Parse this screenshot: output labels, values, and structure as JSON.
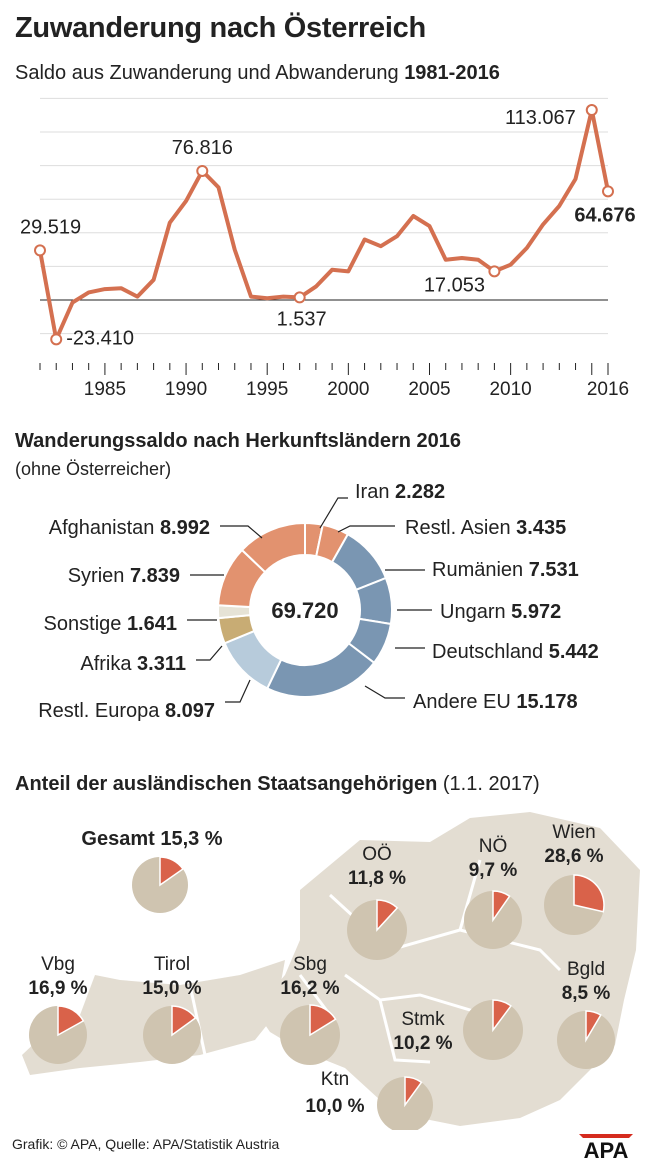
{
  "header": {
    "title": "Zuwanderung nach Österreich",
    "subtitle_prefix": "Saldo aus Zuwanderung und Abwanderung",
    "subtitle_range": "1981-2016"
  },
  "colors": {
    "accent": "#d9745a",
    "line": "#d47050",
    "grid": "#dddddd",
    "pie_bg": "#cfc4b0",
    "pie_slice": "#d9624a",
    "map": "#e3ddd2",
    "donut_asia": "#e2926f",
    "donut_eu": "#7a96b2",
    "donut_other": "#c8ac74",
    "donut_europe": "#b7cbdb",
    "donut_misc": "#e6e3d6"
  },
  "chart_data": [
    {
      "type": "line",
      "title": "Saldo aus Zuwanderung und Abwanderung 1981-2016",
      "x": [
        1981,
        1982,
        1983,
        1984,
        1985,
        1986,
        1987,
        1988,
        1989,
        1990,
        1991,
        1992,
        1993,
        1994,
        1995,
        1996,
        1997,
        1998,
        1999,
        2000,
        2001,
        2002,
        2003,
        2004,
        2005,
        2006,
        2007,
        2008,
        2009,
        2010,
        2011,
        2012,
        2013,
        2014,
        2015,
        2016
      ],
      "values": [
        29519,
        -23410,
        -1500,
        4500,
        6500,
        7000,
        2000,
        12000,
        46000,
        59000,
        76816,
        67000,
        30000,
        2000,
        1000,
        2000,
        1537,
        8000,
        18000,
        17000,
        36000,
        32000,
        38000,
        50000,
        44000,
        24000,
        25000,
        24000,
        17053,
        21000,
        31000,
        45000,
        56000,
        72000,
        113067,
        64676
      ],
      "xlim": [
        1981,
        2016
      ],
      "ylim": [
        -30000,
        115000
      ],
      "xticks": [
        "1985",
        "1990",
        "1995",
        "2000",
        "2005",
        "2010",
        "2016"
      ],
      "annotations": [
        {
          "year": 1981,
          "value": 29519,
          "label": "29.519",
          "bold": false
        },
        {
          "year": 1982,
          "value": -23410,
          "label": "-23.410",
          "bold": false
        },
        {
          "year": 1991,
          "value": 76816,
          "label": "76.816",
          "bold": false
        },
        {
          "year": 1997,
          "value": 1537,
          "label": "1.537",
          "bold": false
        },
        {
          "year": 2009,
          "value": 17053,
          "label": "17.053",
          "bold": false
        },
        {
          "year": 2015,
          "value": 113067,
          "label": "113.067",
          "bold": false
        },
        {
          "year": 2016,
          "value": 64676,
          "label": "64.676",
          "bold": true
        }
      ]
    },
    {
      "type": "pie",
      "title": "Wanderungssaldo nach Herkunftsländern 2016",
      "note": "(ohne Österreicher)",
      "total": "69.720",
      "slices": [
        {
          "name": "Iran",
          "value": 2282,
          "label": "2.282",
          "color": "#e2926f"
        },
        {
          "name": "Restl. Asien",
          "value": 3435,
          "label": "3.435",
          "color": "#e2926f"
        },
        {
          "name": "Rumänien",
          "value": 7531,
          "label": "7.531",
          "color": "#7a96b2"
        },
        {
          "name": "Ungarn",
          "value": 5972,
          "label": "5.972",
          "color": "#7a96b2"
        },
        {
          "name": "Deutschland",
          "value": 5442,
          "label": "5.442",
          "color": "#7a96b2"
        },
        {
          "name": "Andere EU",
          "value": 15178,
          "label": "15.178",
          "color": "#7a96b2"
        },
        {
          "name": "Restl. Europa",
          "value": 8097,
          "label": "8.097",
          "color": "#b7cbdb"
        },
        {
          "name": "Afrika",
          "value": 3311,
          "label": "3.311",
          "color": "#c8ac74"
        },
        {
          "name": "Sonstige",
          "value": 1641,
          "label": "1.641",
          "color": "#e6e3d6"
        },
        {
          "name": "Syrien",
          "value": 7839,
          "label": "7.839",
          "color": "#e2926f"
        },
        {
          "name": "Afghanistan",
          "value": 8992,
          "label": "8.992",
          "color": "#e2926f"
        }
      ]
    },
    {
      "type": "pie",
      "title": "Anteil der ausländischen Staatsangehörigen",
      "date": "(1.1. 2017)",
      "items": [
        {
          "id": "gesamt",
          "name": "Gesamt",
          "value": 15.3,
          "label": "15,3 %"
        },
        {
          "id": "oo",
          "name": "OÖ",
          "value": 11.8,
          "label": "11,8 %"
        },
        {
          "id": "no",
          "name": "NÖ",
          "value": 9.7,
          "label": "9,7 %"
        },
        {
          "id": "wien",
          "name": "Wien",
          "value": 28.6,
          "label": "28,6 %"
        },
        {
          "id": "vbg",
          "name": "Vbg",
          "value": 16.9,
          "label": "16,9 %"
        },
        {
          "id": "tirol",
          "name": "Tirol",
          "value": 15.0,
          "label": "15,0 %"
        },
        {
          "id": "sbg",
          "name": "Sbg",
          "value": 16.2,
          "label": "16,2 %"
        },
        {
          "id": "stmk",
          "name": "Stmk",
          "value": 10.2,
          "label": "10,2 %"
        },
        {
          "id": "bgld",
          "name": "Bgld",
          "value": 8.5,
          "label": "8,5 %"
        },
        {
          "id": "ktn",
          "name": "Ktn",
          "value": 10.0,
          "label": "10,0 %"
        }
      ]
    }
  ],
  "footer": {
    "source": "Grafik: © APA, Quelle: APA/Statistik Austria",
    "logo": "APA"
  }
}
